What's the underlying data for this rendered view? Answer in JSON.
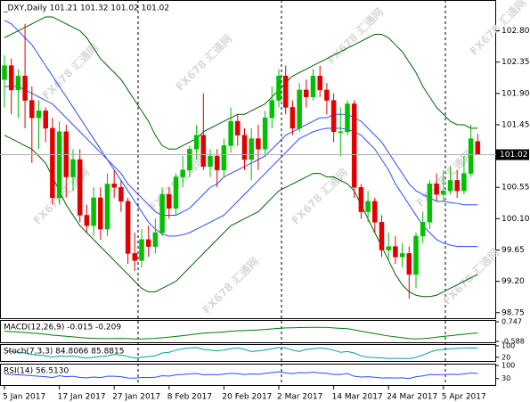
{
  "chart_data": {
    "type": "candlestick",
    "title": "_DXY,Daily  101.21 101.32 101.02 101.02",
    "watermark": "FX678 汇通网",
    "up_color": "#00c000",
    "down_color": "#e00000",
    "categories": [
      "5 Jan 2017",
      null,
      null,
      null,
      null,
      null,
      null,
      null,
      "17 Jan 2017",
      null,
      null,
      null,
      null,
      null,
      null,
      null,
      "27 Jan 2017",
      null,
      null,
      null,
      null,
      null,
      null,
      null,
      "8 Feb 2017",
      null,
      null,
      null,
      null,
      null,
      null,
      null,
      "20 Feb 2017",
      null,
      null,
      null,
      null,
      null,
      null,
      null,
      "2 Mar 2017",
      null,
      null,
      null,
      null,
      null,
      null,
      null,
      "14 Mar 2017",
      null,
      null,
      null,
      null,
      null,
      null,
      null,
      "24 Mar 2017",
      null,
      null,
      null,
      null,
      null,
      null,
      null,
      "5 Apr 2017",
      null,
      null,
      null,
      null,
      null
    ],
    "open": [
      102.1,
      102.3,
      101.95,
      102.15,
      101.8,
      101.55,
      101.65,
      101.4,
      100.4,
      101.35,
      100.7,
      100.95,
      100.15,
      100.0,
      100.4,
      99.95,
      100.6,
      100.55,
      100.35,
      99.6,
      99.5,
      99.8,
      99.7,
      99.9,
      100.45,
      100.25,
      100.7,
      100.8,
      101.1,
      101.3,
      100.85,
      101.0,
      100.8,
      101.15,
      101.5,
      101.3,
      100.95,
      101.25,
      101.1,
      101.55,
      101.8,
      102.15,
      101.7,
      101.4,
      101.95,
      101.85,
      102.15,
      101.95,
      101.8,
      101.35,
      101.35,
      101.75,
      100.55,
      100.2,
      100.35,
      100.05,
      99.65,
      99.7,
      99.55,
      99.6,
      99.3,
      99.85,
      100.05,
      100.6,
      100.45,
      100.5,
      100.65,
      100.5,
      100.75,
      101.21
    ],
    "high": [
      102.45,
      102.4,
      102.25,
      102.9,
      102.0,
      101.8,
      101.7,
      101.55,
      101.5,
      101.45,
      101.1,
      101.1,
      100.3,
      100.55,
      100.55,
      100.75,
      100.8,
      100.65,
      100.4,
      99.9,
      99.95,
      100.0,
      100.1,
      100.55,
      100.55,
      100.75,
      101.0,
      101.15,
      101.45,
      101.9,
      101.1,
      101.1,
      101.25,
      101.7,
      101.6,
      101.4,
      101.4,
      101.45,
      101.65,
      102.0,
      102.25,
      102.3,
      101.8,
      102.05,
      102.1,
      102.25,
      102.3,
      102.05,
      101.9,
      101.7,
      101.8,
      101.8,
      100.6,
      100.5,
      100.4,
      100.15,
      99.9,
      99.85,
      99.75,
      99.7,
      99.9,
      100.2,
      100.65,
      100.75,
      100.8,
      100.85,
      100.8,
      101.0,
      101.45,
      101.32
    ],
    "low": [
      101.7,
      101.6,
      101.55,
      101.4,
      100.9,
      101.1,
      101.2,
      100.3,
      100.3,
      100.4,
      100.5,
      100.05,
      99.9,
      99.85,
      99.8,
      99.85,
      100.4,
      100.2,
      99.45,
      99.35,
      99.4,
      99.55,
      99.6,
      99.85,
      100.1,
      100.15,
      100.55,
      100.7,
      100.95,
      100.8,
      100.7,
      100.55,
      100.7,
      101.05,
      101.15,
      100.8,
      100.65,
      100.8,
      101.0,
      101.4,
      101.7,
      101.6,
      101.3,
      101.35,
      101.7,
      101.8,
      101.85,
      101.6,
      101.2,
      101.0,
      101.3,
      100.4,
      100.1,
      100.05,
      99.9,
      99.55,
      99.5,
      99.45,
      99.4,
      98.95,
      99.1,
      99.75,
      99.95,
      100.35,
      100.35,
      100.45,
      100.4,
      100.45,
      100.7,
      101.02
    ],
    "close": [
      102.3,
      101.95,
      102.15,
      101.8,
      101.55,
      101.65,
      101.4,
      100.4,
      101.35,
      100.7,
      100.95,
      100.15,
      100.0,
      100.4,
      99.95,
      100.6,
      100.55,
      100.35,
      99.6,
      99.5,
      99.8,
      99.7,
      99.9,
      100.45,
      100.25,
      100.7,
      100.8,
      101.1,
      101.3,
      100.85,
      101.0,
      100.8,
      101.15,
      101.5,
      101.3,
      100.95,
      101.25,
      101.1,
      101.55,
      101.8,
      102.15,
      101.7,
      101.4,
      101.95,
      101.85,
      102.15,
      101.95,
      101.8,
      101.35,
      101.35,
      101.75,
      100.55,
      100.2,
      100.35,
      100.05,
      99.65,
      99.7,
      99.55,
      99.6,
      99.3,
      99.85,
      100.05,
      100.6,
      100.45,
      100.5,
      100.65,
      100.5,
      100.75,
      101.25,
      101.02
    ],
    "ylim": [
      98.67,
      103.23
    ],
    "yticks": [
      {
        "value": 102.8,
        "label": "102.80"
      },
      102.35,
      {
        "value": 101.9,
        "label": "101.90"
      },
      101.45,
      100.55,
      {
        "value": 100.1,
        "label": "100.10"
      },
      99.65,
      {
        "value": 99.2,
        "label": "99.20"
      },
      {
        "value": 98.75,
        "label": "98.75"
      }
    ],
    "last_price": 101.02,
    "overlays": [
      {
        "color": "#006400",
        "values": [
          102.7,
          102.75,
          102.8,
          102.85,
          102.9,
          102.95,
          103.0,
          103.0,
          102.95,
          102.9,
          102.85,
          102.8,
          102.7,
          102.55,
          102.4,
          102.3,
          102.2,
          102.1,
          101.95,
          101.8,
          101.65,
          101.5,
          101.3,
          101.15,
          101.1,
          101.1,
          101.15,
          101.2,
          101.25,
          101.35,
          101.4,
          101.45,
          101.5,
          101.55,
          101.6,
          101.6,
          101.65,
          101.7,
          101.75,
          101.85,
          101.95,
          102.05,
          102.15,
          102.2,
          102.25,
          102.3,
          102.35,
          102.4,
          102.45,
          102.5,
          102.55,
          102.6,
          102.65,
          102.7,
          102.75,
          102.75,
          102.7,
          102.6,
          102.5,
          102.35,
          102.2,
          102.0,
          101.85,
          101.7,
          101.6,
          101.5,
          101.45,
          101.45,
          101.4,
          101.4
        ]
      },
      {
        "color": "#006400",
        "values": [
          101.3,
          101.25,
          101.2,
          101.15,
          101.1,
          101.0,
          100.9,
          100.7,
          100.5,
          100.3,
          100.15,
          100.0,
          99.9,
          99.8,
          99.7,
          99.6,
          99.5,
          99.4,
          99.3,
          99.2,
          99.1,
          99.05,
          99.05,
          99.1,
          99.15,
          99.2,
          99.3,
          99.4,
          99.5,
          99.6,
          99.7,
          99.8,
          99.9,
          100.0,
          100.05,
          100.1,
          100.15,
          100.2,
          100.3,
          100.4,
          100.5,
          100.55,
          100.6,
          100.65,
          100.7,
          100.75,
          100.75,
          100.7,
          100.7,
          100.65,
          100.6,
          100.5,
          100.3,
          100.1,
          99.9,
          99.7,
          99.5,
          99.3,
          99.15,
          99.05,
          99.0,
          98.98,
          98.98,
          99.0,
          99.05,
          99.1,
          99.15,
          99.2,
          99.25,
          99.3
        ]
      },
      {
        "color": "#2a4dff",
        "values": [
          102.0,
          102.0,
          102.0,
          101.95,
          101.9,
          101.85,
          101.8,
          101.75,
          101.65,
          101.55,
          101.45,
          101.35,
          101.25,
          101.15,
          101.05,
          100.95,
          100.85,
          100.75,
          100.6,
          100.5,
          100.4,
          100.3,
          100.2,
          100.15,
          100.15,
          100.15,
          100.2,
          100.25,
          100.35,
          100.45,
          100.55,
          100.6,
          100.7,
          100.75,
          100.8,
          100.85,
          100.9,
          100.95,
          101.0,
          101.1,
          101.2,
          101.3,
          101.35,
          101.4,
          101.45,
          101.5,
          101.55,
          101.55,
          101.6,
          101.6,
          101.6,
          101.55,
          101.5,
          101.4,
          101.3,
          101.2,
          101.05,
          100.9,
          100.75,
          100.6,
          100.5,
          100.45,
          100.4,
          100.35,
          100.35,
          100.33,
          100.32,
          100.3,
          100.3,
          100.3
        ]
      },
      {
        "color": "#2a4dff",
        "values": [
          102.95,
          102.9,
          102.8,
          102.7,
          102.6,
          102.45,
          102.3,
          102.15,
          102.0,
          101.85,
          101.7,
          101.55,
          101.4,
          101.25,
          101.1,
          100.95,
          100.8,
          100.65,
          100.5,
          100.35,
          100.2,
          100.05,
          99.95,
          99.88,
          99.85,
          99.85,
          99.87,
          99.9,
          99.95,
          100.0,
          100.05,
          100.1,
          100.15,
          100.25,
          100.35,
          100.45,
          100.55,
          100.65,
          100.75,
          100.85,
          100.95,
          101.05,
          101.15,
          101.25,
          101.3,
          101.35,
          101.38,
          101.4,
          101.4,
          101.4,
          101.38,
          101.35,
          101.3,
          101.2,
          101.1,
          100.95,
          100.8,
          100.6,
          100.45,
          100.3,
          100.15,
          100.0,
          99.9,
          99.8,
          99.75,
          99.72,
          99.7,
          99.7,
          99.7,
          99.7
        ]
      }
    ],
    "panels": [
      {
        "type": "line",
        "label": "MACD(12,26,9) -0.015 -0.209",
        "color": "#008000",
        "ylim": [
          -0.588,
          0.747
        ],
        "yticks": [
          0.747,
          -0.588
        ],
        "values": [
          0.1,
          0.08,
          0.05,
          0.02,
          -0.02,
          -0.06,
          -0.1,
          -0.16,
          -0.2,
          -0.24,
          -0.28,
          -0.32,
          -0.36,
          -0.38,
          -0.4,
          -0.4,
          -0.4,
          -0.39,
          -0.4,
          -0.42,
          -0.42,
          -0.4,
          -0.38,
          -0.34,
          -0.3,
          -0.25,
          -0.2,
          -0.14,
          -0.08,
          -0.03,
          0.0,
          0.03,
          0.06,
          0.1,
          0.13,
          0.15,
          0.17,
          0.19,
          0.22,
          0.26,
          0.3,
          0.33,
          0.34,
          0.35,
          0.36,
          0.37,
          0.37,
          0.36,
          0.33,
          0.3,
          0.28,
          0.2,
          0.1,
          0.02,
          -0.06,
          -0.14,
          -0.22,
          -0.28,
          -0.34,
          -0.4,
          -0.42,
          -0.4,
          -0.36,
          -0.3,
          -0.25,
          -0.2,
          -0.15,
          -0.1,
          -0.05,
          -0.015
        ]
      },
      {
        "type": "line",
        "label": "Stoch(7,3,3) 84.8066 85.8815",
        "color": "#00a0a0",
        "ylim": [
          0,
          100
        ],
        "yticks": [
          100,
          20
        ],
        "values": [
          70,
          60,
          55,
          50,
          40,
          35,
          30,
          20,
          30,
          25,
          30,
          20,
          15,
          20,
          25,
          30,
          40,
          35,
          25,
          15,
          20,
          25,
          30,
          50,
          55,
          70,
          80,
          85,
          88,
          75,
          70,
          65,
          70,
          80,
          85,
          75,
          60,
          65,
          70,
          80,
          88,
          85,
          70,
          60,
          75,
          80,
          85,
          80,
          70,
          55,
          60,
          50,
          30,
          20,
          18,
          15,
          12,
          12,
          12,
          10,
          20,
          35,
          55,
          70,
          75,
          80,
          82,
          85,
          86,
          85
        ]
      },
      {
        "type": "line",
        "label": "RSI(14) 56.5130",
        "color": "#2a4dff",
        "ylim": [
          0,
          100
        ],
        "yticks": [
          100,
          30
        ],
        "values": [
          55,
          52,
          50,
          48,
          45,
          42,
          40,
          35,
          45,
          40,
          42,
          36,
          34,
          38,
          35,
          42,
          42,
          40,
          33,
          32,
          36,
          35,
          37,
          45,
          43,
          50,
          52,
          55,
          57,
          50,
          52,
          50,
          54,
          58,
          56,
          52,
          55,
          53,
          58,
          62,
          66,
          60,
          56,
          62,
          60,
          64,
          60,
          58,
          52,
          52,
          57,
          42,
          38,
          40,
          37,
          33,
          34,
          33,
          34,
          30,
          40,
          44,
          52,
          50,
          51,
          53,
          51,
          55,
          60,
          56.513
        ]
      }
    ]
  }
}
